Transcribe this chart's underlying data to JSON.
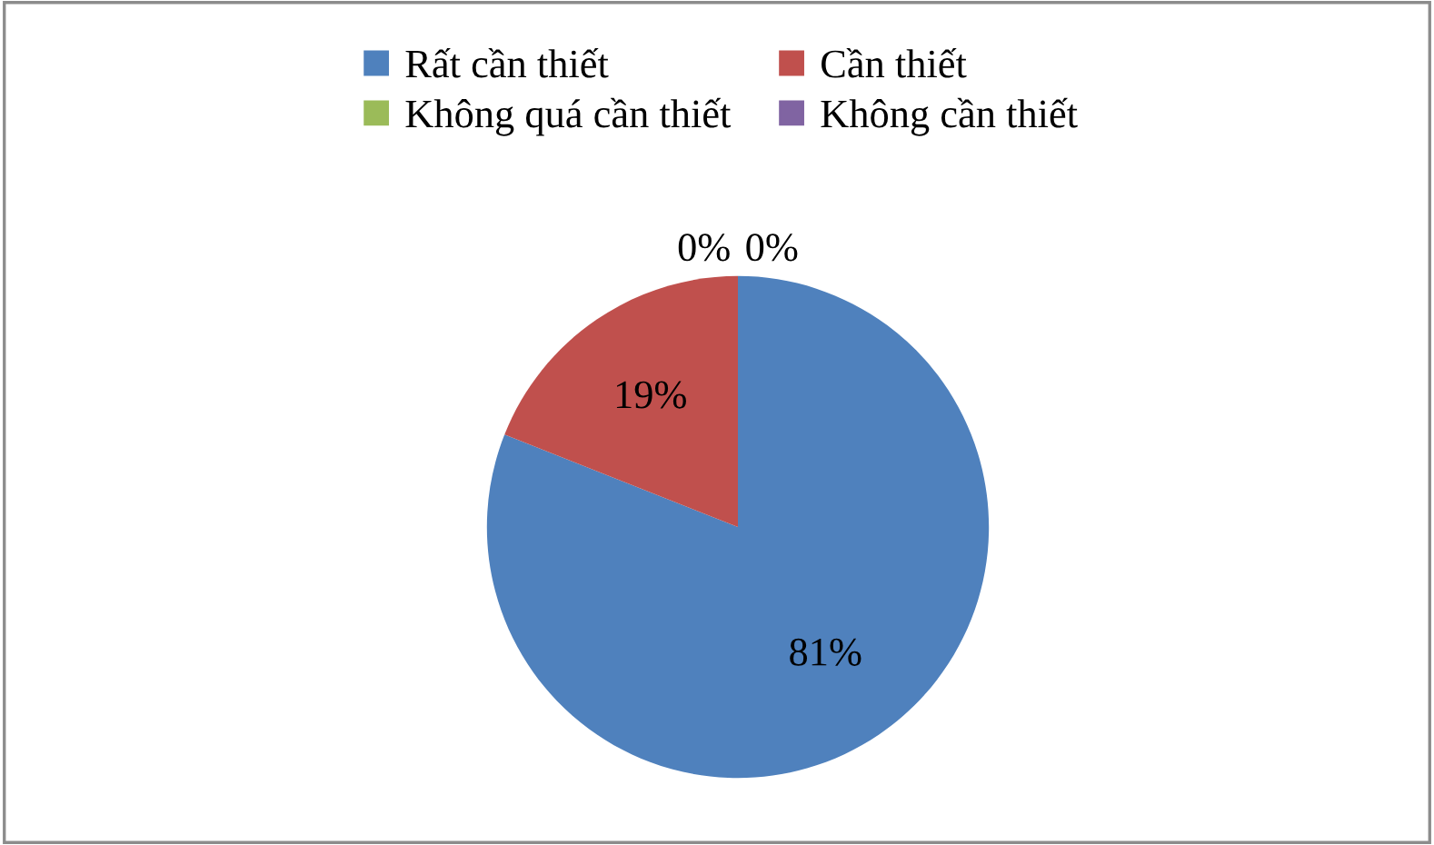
{
  "chart_data": {
    "type": "pie",
    "categories": [
      "Rất cần thiết",
      "Cần thiết",
      "Không quá cần thiết",
      "Không cần thiết"
    ],
    "values": [
      81,
      19,
      0,
      0
    ],
    "colors": [
      "#4f81bd",
      "#c0504d",
      "#9bbb59",
      "#8064a2"
    ],
    "value_labels": [
      "81%",
      "19%",
      "0%",
      "0%"
    ],
    "legend": "top"
  }
}
